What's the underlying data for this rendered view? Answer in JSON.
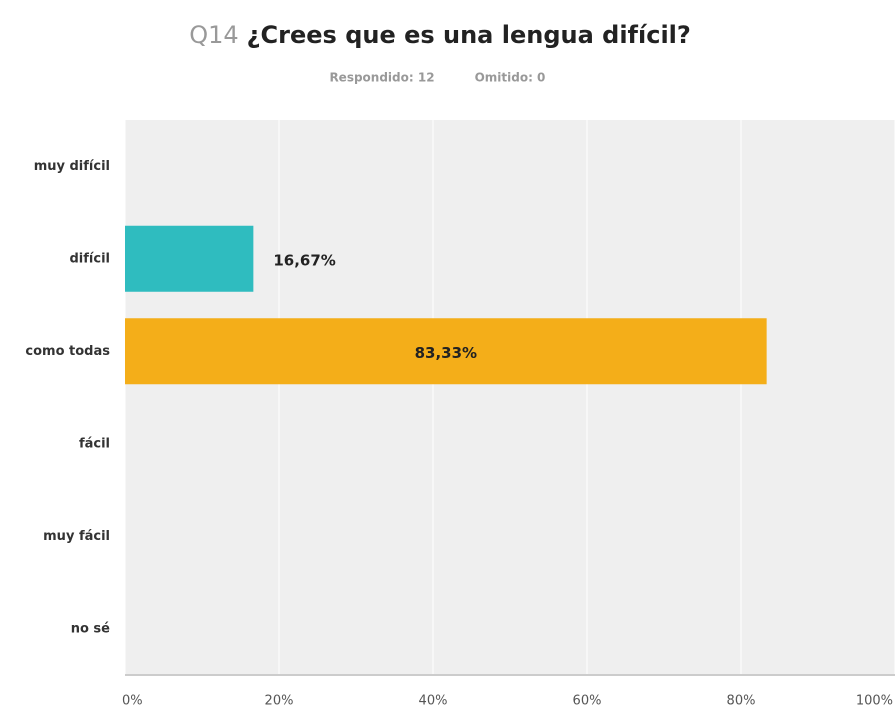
{
  "chart_data": {
    "type": "bar",
    "orientation": "horizontal",
    "question_number": "Q14",
    "title": "¿Crees que es una lengua difícil?",
    "answered": "Respondido: 12",
    "skipped": "Omitido: 0",
    "categories": [
      "muy difícil",
      "difícil",
      "como todas",
      "fácil",
      "muy fácil",
      "no sé"
    ],
    "values": [
      0,
      16.67,
      83.33,
      0,
      0,
      0
    ],
    "value_labels": [
      null,
      "16,67%",
      "83,33%",
      null,
      null,
      null
    ],
    "colors": [
      "#2fbcbf",
      "#2fbcbf",
      "#f4ae19",
      "#2fbcbf",
      "#2fbcbf",
      "#2fbcbf"
    ],
    "xlim": [
      0,
      100
    ],
    "xticks": [
      {
        "value": 0,
        "label": "0%"
      },
      {
        "value": 20,
        "label": "20%"
      },
      {
        "value": 40,
        "label": "40%"
      },
      {
        "value": 60,
        "label": "60%"
      },
      {
        "value": 80,
        "label": "80%"
      },
      {
        "value": 100,
        "label": "100%"
      }
    ],
    "grid": true
  }
}
